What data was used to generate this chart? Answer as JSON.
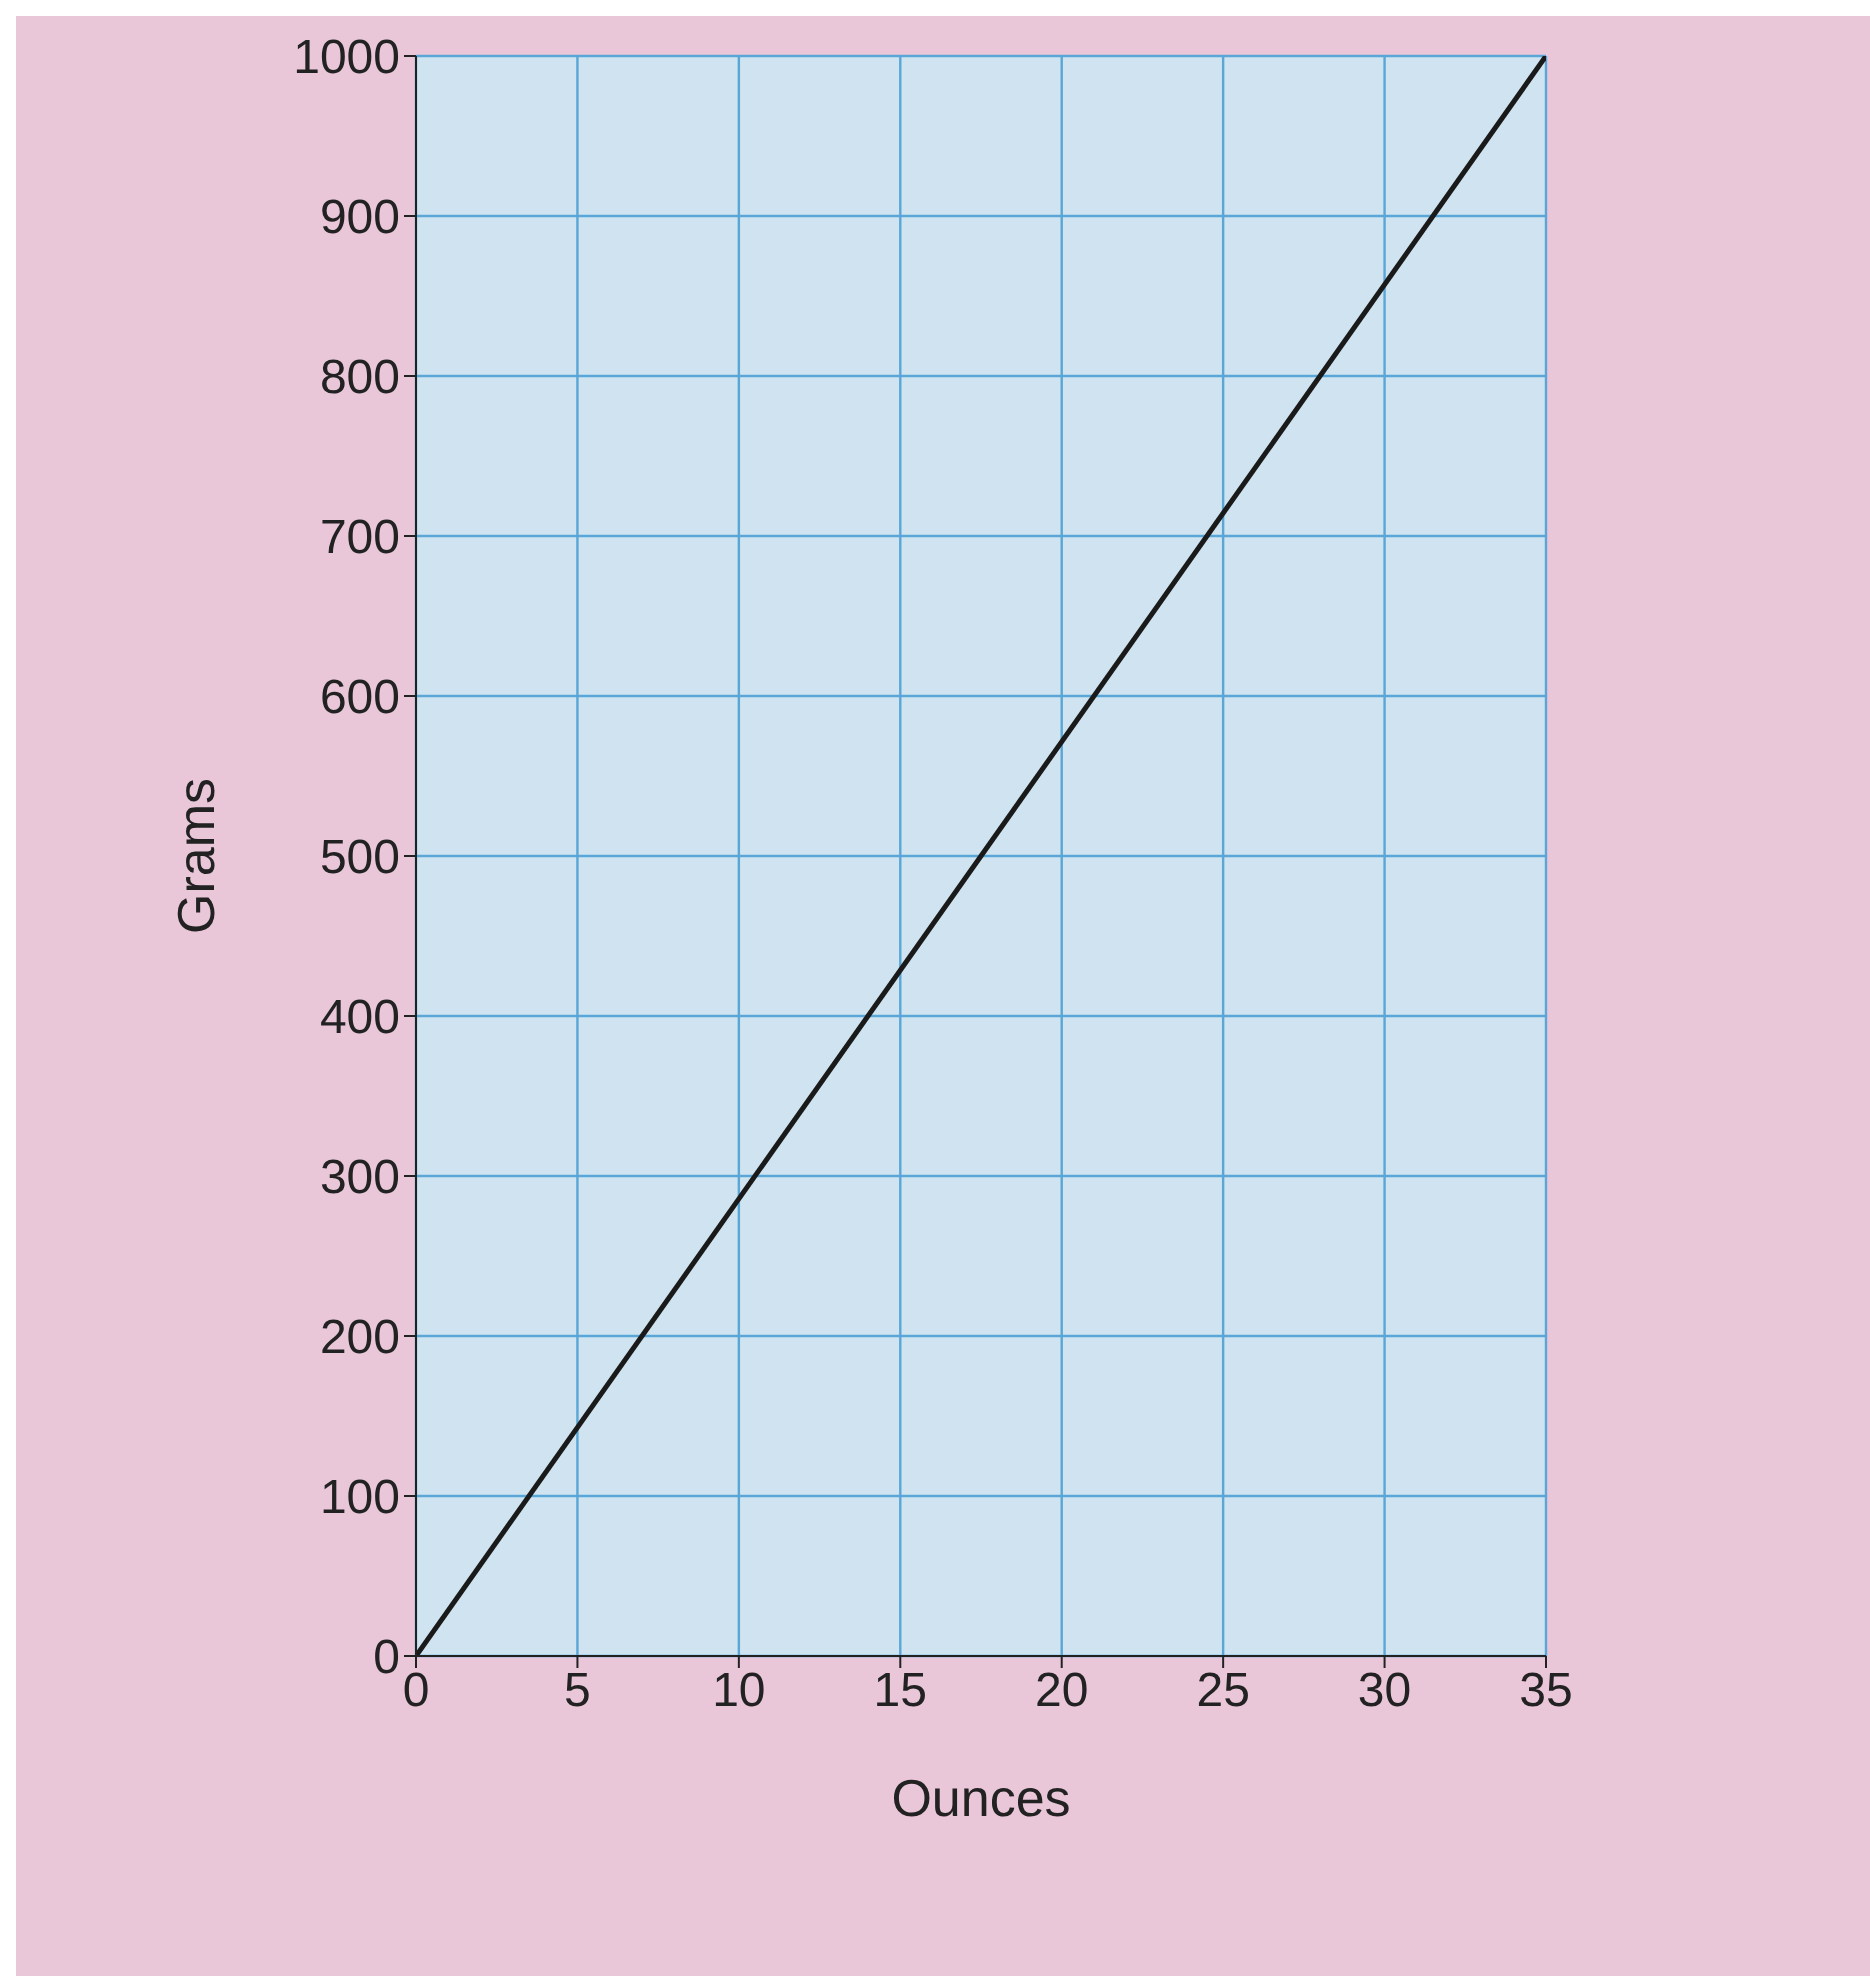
{
  "chart_data": {
    "type": "line",
    "xlabel": "Ounces",
    "ylabel": "Grams",
    "x": [
      0,
      35
    ],
    "series": [
      {
        "color": "#1a1a1a",
        "values": [
          0,
          1000
        ]
      }
    ],
    "xlim": [
      0,
      35
    ],
    "xticks": [
      0,
      5,
      10,
      15,
      20,
      25,
      30,
      35
    ],
    "ylim": [
      0,
      1000
    ],
    "yticks": [
      0,
      100,
      200,
      300,
      400,
      500,
      600,
      700,
      800,
      900,
      1000
    ],
    "grid": true,
    "line_style": "solid"
  }
}
